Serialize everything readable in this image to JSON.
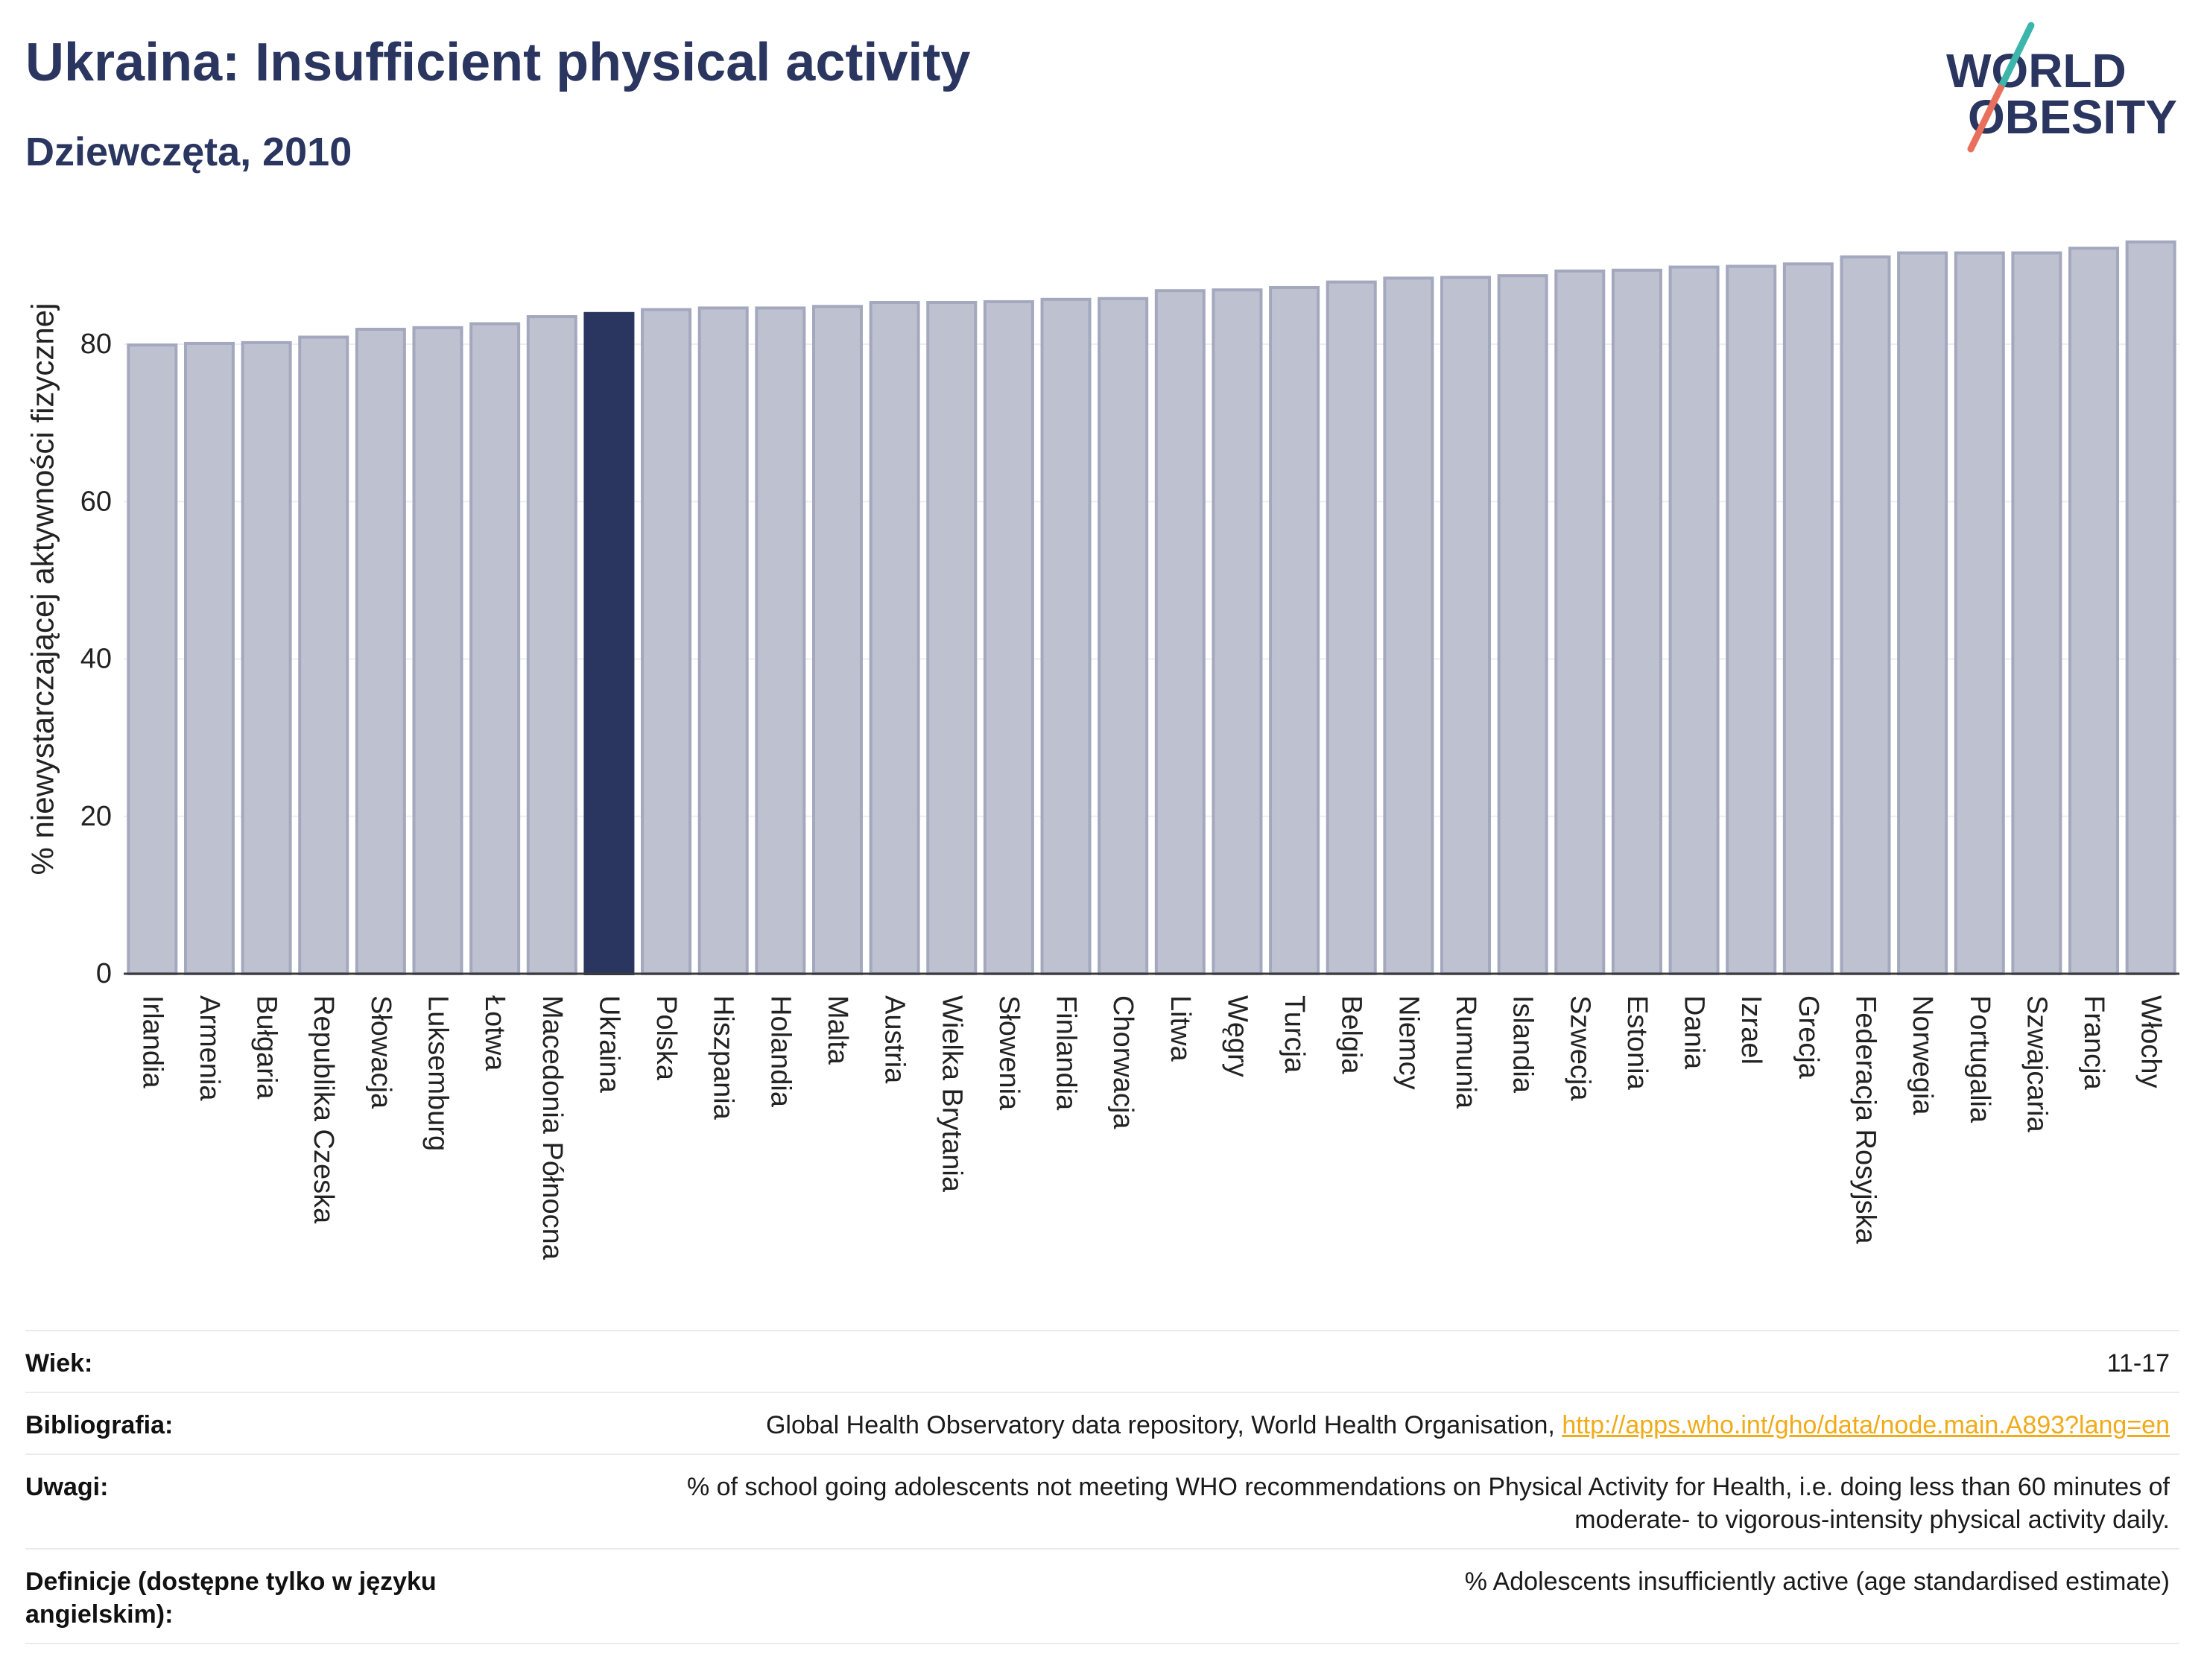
{
  "chart_data": {
    "type": "bar",
    "title": "Ukraina: Insufficient physical activity",
    "subtitle": "Dziewczęta, 2010",
    "xlabel": "",
    "ylabel": "% niewystarczającej aktywności fizycznej",
    "categories": [
      "Irlandia",
      "Armenia",
      "Bułgaria",
      "Republika Czeska",
      "Słowacja",
      "Luksemburg",
      "Łotwa",
      "Macedonia Północna",
      "Ukraina",
      "Polska",
      "Hiszpania",
      "Holandia",
      "Malta",
      "Austria",
      "Wielka Brytania",
      "Słowenia",
      "Finlandia",
      "Chorwacja",
      "Litwa",
      "Węgry",
      "Turcja",
      "Belgia",
      "Niemcy",
      "Rumunia",
      "Islandia",
      "Szwecja",
      "Estonia",
      "Dania",
      "Izrael",
      "Grecja",
      "Federacja Rosyjska",
      "Norwegia",
      "Portugalia",
      "Szwajcaria",
      "Francja",
      "Włochy"
    ],
    "values": [
      79.9,
      80.1,
      80.2,
      80.9,
      81.9,
      82.1,
      82.6,
      83.5,
      83.9,
      84.4,
      84.6,
      84.6,
      84.8,
      85.3,
      85.3,
      85.4,
      85.7,
      85.8,
      86.8,
      86.9,
      87.2,
      87.9,
      88.4,
      88.5,
      88.7,
      89.3,
      89.4,
      89.8,
      89.9,
      90.2,
      91.1,
      91.6,
      91.6,
      91.6,
      92.2,
      93.0
    ],
    "highlight_index": 8,
    "ylim": [
      0,
      97.8
    ],
    "yticks": [
      0,
      20,
      40,
      60,
      80
    ],
    "grid": true,
    "colors": {
      "bar": "#bec2d0",
      "bar_border": "#a3a8be",
      "highlight": "#2a3560",
      "grid": "#eceef3",
      "axis": "#3a3a3a"
    }
  },
  "logo": {
    "line1": "WORLD",
    "line2": "OBESITY",
    "colors": {
      "text": "#2a3560",
      "slash_top": "#3cb5ab",
      "slash_bottom": "#e8705d"
    }
  },
  "info_table": {
    "rows": [
      {
        "label": "Wiek:",
        "value": "11-17"
      },
      {
        "label": "Bibliografia:",
        "value": "Global Health Observatory data repository, World Health Organisation,",
        "link": "http://apps.who.int/gho/data/node.main.A893?lang=en"
      },
      {
        "label": "Uwagi:",
        "value": "% of school going adolescents not meeting WHO recommendations on Physical Activity for Health, i.e. doing less than 60 minutes of moderate- to vigorous-intensity physical activity daily."
      },
      {
        "label": "Definicje (dostępne tylko w języku angielskim):",
        "value": "% Adolescents insufficiently active (age standardised estimate)"
      }
    ],
    "link_color": "#f0ab1a"
  }
}
